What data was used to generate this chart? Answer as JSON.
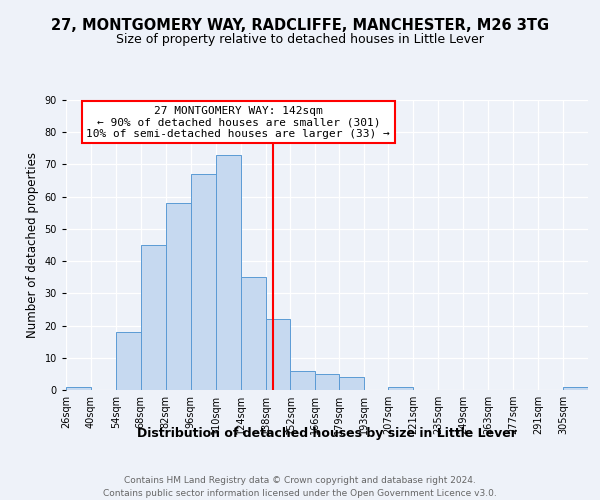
{
  "title": "27, MONTGOMERY WAY, RADCLIFFE, MANCHESTER, M26 3TG",
  "subtitle": "Size of property relative to detached houses in Little Lever",
  "xlabel": "Distribution of detached houses by size in Little Lever",
  "ylabel": "Number of detached properties",
  "footer_line1": "Contains HM Land Registry data © Crown copyright and database right 2024.",
  "footer_line2": "Contains public sector information licensed under the Open Government Licence v3.0.",
  "bin_labels": [
    "26sqm",
    "40sqm",
    "54sqm",
    "68sqm",
    "82sqm",
    "96sqm",
    "110sqm",
    "124sqm",
    "138sqm",
    "152sqm",
    "166sqm",
    "179sqm",
    "193sqm",
    "207sqm",
    "221sqm",
    "235sqm",
    "249sqm",
    "263sqm",
    "277sqm",
    "291sqm",
    "305sqm"
  ],
  "bar_heights": [
    1,
    0,
    18,
    45,
    58,
    67,
    73,
    35,
    22,
    6,
    5,
    4,
    0,
    1,
    0,
    0,
    0,
    0,
    0,
    0,
    1
  ],
  "bar_color": "#c6d9f0",
  "bar_edge_color": "#5b9bd5",
  "vline_x": 142,
  "vline_color": "red",
  "annotation_text": "27 MONTGOMERY WAY: 142sqm\n← 90% of detached houses are smaller (301)\n10% of semi-detached houses are larger (33) →",
  "annotation_box_color": "white",
  "annotation_box_edge_color": "red",
  "ylim": [
    0,
    90
  ],
  "yticks": [
    0,
    10,
    20,
    30,
    40,
    50,
    60,
    70,
    80,
    90
  ],
  "bin_edges": [
    26,
    40,
    54,
    68,
    82,
    96,
    110,
    124,
    138,
    152,
    166,
    179,
    193,
    207,
    221,
    235,
    249,
    263,
    277,
    291,
    305,
    319
  ],
  "background_color": "#eef2f9",
  "title_fontsize": 10.5,
  "subtitle_fontsize": 9,
  "annotation_fontsize": 8,
  "axis_label_fontsize": 8.5,
  "tick_fontsize": 7,
  "footer_fontsize": 6.5,
  "xlabel_fontsize": 9
}
